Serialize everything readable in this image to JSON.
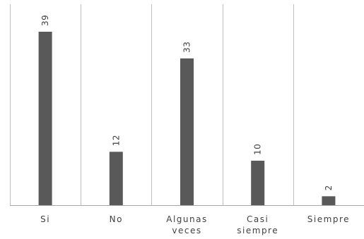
{
  "chart_data": {
    "type": "bar",
    "title": "",
    "xlabel": "",
    "ylabel": "",
    "categories": [
      [
        "Si"
      ],
      [
        "No"
      ],
      [
        "Algunas",
        "veces"
      ],
      [
        "Casi",
        "siempre"
      ],
      [
        "Siempre"
      ]
    ],
    "values": [
      39,
      12,
      33,
      10,
      2
    ],
    "ylim": [
      0,
      39
    ],
    "data_labels": true,
    "vertical_category_gridlines": true,
    "legend": "none",
    "bar_color": "#595959",
    "grid_color": "#bfbfbf",
    "axis_color": "#a6a6a6",
    "text_color": "#404040"
  }
}
